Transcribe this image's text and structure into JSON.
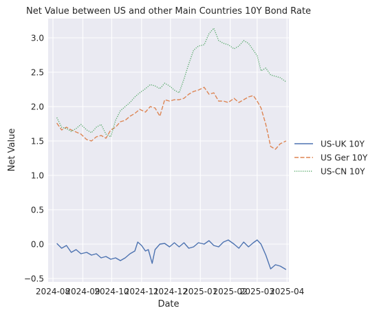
{
  "chart_data": {
    "type": "line",
    "title": "Net Value between US and other Main Countries 10Y Bond Rate",
    "xlabel": "Date",
    "ylabel": "Net Value",
    "xlim": [
      "2024-07-27",
      "2025-04-03"
    ],
    "ylim": [
      -0.55,
      3.28
    ],
    "x_ticks": [
      "2024-08",
      "2024-09",
      "2024-10",
      "2024-11",
      "2024-12",
      "2025-01",
      "2025-02",
      "2025-03",
      "2025-04"
    ],
    "x_tick_dates": [
      "2024-08-01",
      "2024-09-01",
      "2024-10-01",
      "2024-11-01",
      "2024-12-01",
      "2025-01-01",
      "2025-02-01",
      "2025-03-01",
      "2025-04-01"
    ],
    "y_ticks": [
      -0.5,
      0.0,
      0.5,
      1.0,
      1.5,
      2.0,
      2.5,
      3.0
    ],
    "y_tick_labels": [
      "−0.5",
      "0.0",
      "0.5",
      "1.0",
      "1.5",
      "2.0",
      "2.5",
      "3.0"
    ],
    "grid": true,
    "background_color": "#eaeaf2",
    "legend_placement": "center-right outside",
    "series": [
      {
        "name": "US-UK 10Y",
        "color": "#4c72b0",
        "dash": "solid",
        "x": [
          "2024-08-05",
          "2024-08-10",
          "2024-08-15",
          "2024-08-20",
          "2024-08-25",
          "2024-08-30",
          "2024-09-05",
          "2024-09-10",
          "2024-09-15",
          "2024-09-20",
          "2024-09-25",
          "2024-09-30",
          "2024-10-05",
          "2024-10-10",
          "2024-10-15",
          "2024-10-20",
          "2024-10-25",
          "2024-10-28",
          "2024-11-01",
          "2024-11-05",
          "2024-11-08",
          "2024-11-12",
          "2024-11-15",
          "2024-11-20",
          "2024-11-25",
          "2024-11-30",
          "2024-12-05",
          "2024-12-10",
          "2024-12-15",
          "2024-12-20",
          "2024-12-25",
          "2024-12-30",
          "2025-01-05",
          "2025-01-10",
          "2025-01-15",
          "2025-01-20",
          "2025-01-25",
          "2025-01-30",
          "2025-02-05",
          "2025-02-10",
          "2025-02-15",
          "2025-02-20",
          "2025-02-25",
          "2025-03-01",
          "2025-03-05",
          "2025-03-10",
          "2025-03-15",
          "2025-03-20",
          "2025-03-25",
          "2025-03-31"
        ],
        "values": [
          0.01,
          -0.06,
          -0.02,
          -0.12,
          -0.08,
          -0.14,
          -0.12,
          -0.16,
          -0.14,
          -0.2,
          -0.18,
          -0.22,
          -0.2,
          -0.24,
          -0.2,
          -0.14,
          -0.1,
          0.03,
          -0.02,
          -0.1,
          -0.08,
          -0.28,
          -0.08,
          0.0,
          0.01,
          -0.04,
          0.02,
          -0.04,
          0.02,
          -0.06,
          -0.04,
          0.02,
          0.0,
          0.05,
          -0.02,
          -0.04,
          0.03,
          0.06,
          0.0,
          -0.06,
          0.03,
          -0.04,
          0.02,
          0.06,
          0.0,
          -0.16,
          -0.36,
          -0.3,
          -0.32,
          -0.37
        ]
      },
      {
        "name": "US Ger 10Y",
        "color": "#dd8452",
        "dash": "dashed",
        "x": [
          "2024-08-05",
          "2024-08-10",
          "2024-08-15",
          "2024-08-20",
          "2024-08-25",
          "2024-08-30",
          "2024-09-05",
          "2024-09-10",
          "2024-09-15",
          "2024-09-20",
          "2024-09-25",
          "2024-09-30",
          "2024-10-05",
          "2024-10-10",
          "2024-10-15",
          "2024-10-20",
          "2024-10-25",
          "2024-10-30",
          "2024-11-05",
          "2024-11-10",
          "2024-11-15",
          "2024-11-20",
          "2024-11-25",
          "2024-11-30",
          "2024-12-05",
          "2024-12-10",
          "2024-12-15",
          "2024-12-20",
          "2024-12-25",
          "2024-12-30",
          "2025-01-05",
          "2025-01-10",
          "2025-01-15",
          "2025-01-20",
          "2025-01-25",
          "2025-01-30",
          "2025-02-05",
          "2025-02-10",
          "2025-02-15",
          "2025-02-20",
          "2025-02-25",
          "2025-03-01",
          "2025-03-05",
          "2025-03-10",
          "2025-03-15",
          "2025-03-20",
          "2025-03-25",
          "2025-03-31"
        ],
        "values": [
          1.76,
          1.66,
          1.7,
          1.66,
          1.63,
          1.6,
          1.52,
          1.5,
          1.56,
          1.58,
          1.54,
          1.66,
          1.7,
          1.78,
          1.8,
          1.86,
          1.9,
          1.96,
          1.92,
          2.0,
          1.98,
          1.86,
          2.1,
          2.08,
          2.1,
          2.1,
          2.12,
          2.18,
          2.22,
          2.24,
          2.28,
          2.18,
          2.2,
          2.08,
          2.08,
          2.06,
          2.12,
          2.06,
          2.1,
          2.14,
          2.16,
          2.08,
          1.98,
          1.74,
          1.42,
          1.38,
          1.46,
          1.5
        ]
      },
      {
        "name": "US-CN 10Y",
        "color": "#55a868",
        "dash": "dotted",
        "x": [
          "2024-08-05",
          "2024-08-10",
          "2024-08-15",
          "2024-08-20",
          "2024-08-25",
          "2024-08-30",
          "2024-09-05",
          "2024-09-10",
          "2024-09-15",
          "2024-09-20",
          "2024-09-25",
          "2024-09-30",
          "2024-10-05",
          "2024-10-10",
          "2024-10-15",
          "2024-10-20",
          "2024-10-25",
          "2024-10-30",
          "2024-11-05",
          "2024-11-10",
          "2024-11-15",
          "2024-11-20",
          "2024-11-25",
          "2024-11-30",
          "2024-12-05",
          "2024-12-10",
          "2024-12-15",
          "2024-12-20",
          "2024-12-25",
          "2024-12-30",
          "2025-01-05",
          "2025-01-10",
          "2025-01-15",
          "2025-01-20",
          "2025-01-25",
          "2025-01-30",
          "2025-02-05",
          "2025-02-10",
          "2025-02-15",
          "2025-02-20",
          "2025-02-25",
          "2025-03-01",
          "2025-03-05",
          "2025-03-10",
          "2025-03-15",
          "2025-03-20",
          "2025-03-25",
          "2025-03-31"
        ],
        "values": [
          1.84,
          1.7,
          1.68,
          1.64,
          1.68,
          1.74,
          1.66,
          1.62,
          1.7,
          1.74,
          1.6,
          1.56,
          1.8,
          1.94,
          2.0,
          2.06,
          2.14,
          2.2,
          2.26,
          2.32,
          2.3,
          2.26,
          2.34,
          2.3,
          2.24,
          2.2,
          2.4,
          2.62,
          2.82,
          2.88,
          2.9,
          3.06,
          3.14,
          2.96,
          2.92,
          2.9,
          2.84,
          2.88,
          2.96,
          2.92,
          2.82,
          2.74,
          2.52,
          2.56,
          2.46,
          2.44,
          2.42,
          2.36
        ]
      }
    ]
  }
}
